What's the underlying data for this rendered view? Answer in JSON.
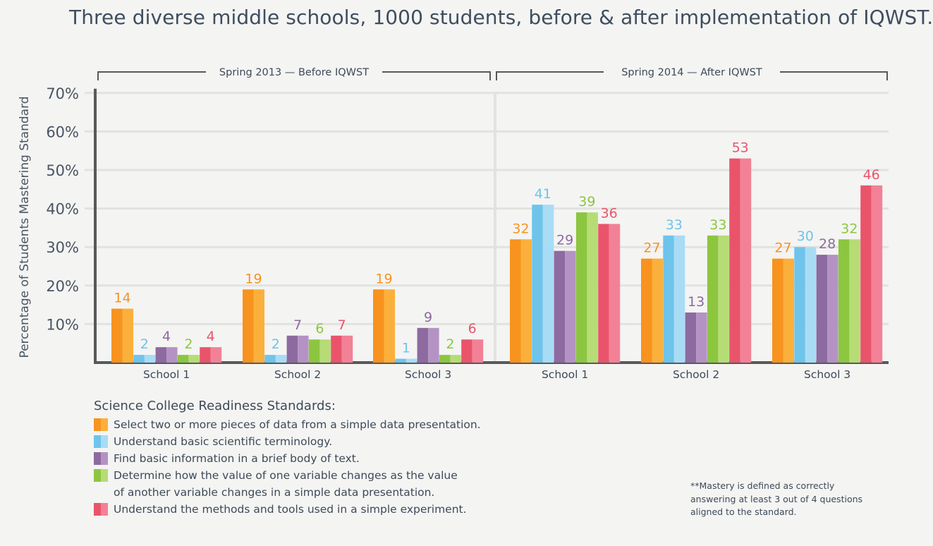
{
  "title": "Three diverse middle schools, 1000 students, before & after implementation of IQWST.",
  "chart_data": {
    "type": "bar",
    "ylabel": "Percentage of Students Mastering Standard",
    "ylim": [
      0,
      70
    ],
    "yticks": [
      "10%",
      "20%",
      "30%",
      "40%",
      "50%",
      "60%",
      "70%"
    ],
    "grid": true,
    "periods": [
      {
        "label": "Spring 2013 — Before IQWST",
        "categories": [
          "School 1",
          "School 2",
          "School 3"
        ],
        "series": [
          {
            "name": "Select two or more pieces of data from a simple data presentation.",
            "values": [
              14,
              19,
              19
            ]
          },
          {
            "name": "Understand basic scientific terminology.",
            "values": [
              2,
              2,
              1
            ]
          },
          {
            "name": "Find basic information in a brief body of text.",
            "values": [
              4,
              7,
              9
            ]
          },
          {
            "name": "Determine how the value of one variable changes as the value of another variable changes in a simple data presentation.",
            "values": [
              2,
              6,
              2
            ]
          },
          {
            "name": "Understand the methods and tools used in a simple experiment.",
            "values": [
              4,
              7,
              6
            ]
          }
        ]
      },
      {
        "label": "Spring 2014 — After IQWST",
        "categories": [
          "School 1",
          "School 2",
          "School 3"
        ],
        "series": [
          {
            "name": "Select two or more pieces of data from a simple data presentation.",
            "values": [
              32,
              27,
              27
            ]
          },
          {
            "name": "Understand basic scientific terminology.",
            "values": [
              41,
              33,
              30
            ]
          },
          {
            "name": "Find basic information in a brief body of text.",
            "values": [
              29,
              13,
              28
            ]
          },
          {
            "name": "Determine how the value of one variable changes as the value of another variable changes in a simple data presentation.",
            "values": [
              39,
              33,
              32
            ]
          },
          {
            "name": "Understand the methods and tools used in a simple experiment.",
            "values": [
              36,
              53,
              46
            ]
          }
        ]
      }
    ]
  },
  "series_colors": [
    {
      "dark": "#f7931e",
      "light": "#fbb03b",
      "label": "#f7931e"
    },
    {
      "dark": "#6ec4ea",
      "light": "#a8dcf5",
      "label": "#6ec4ea"
    },
    {
      "dark": "#8d6a9f",
      "light": "#b493c4",
      "label": "#8d6a9f"
    },
    {
      "dark": "#8cc63f",
      "light": "#b6dc76",
      "label": "#8cc63f"
    },
    {
      "dark": "#e9546b",
      "light": "#f28196",
      "label": "#e9546b"
    }
  ],
  "legend": {
    "title": "Science College Readiness Standards:",
    "items": [
      "Select two or more pieces of data from a simple data presentation.",
      "Understand basic scientific terminology.",
      "Find basic information in a brief body of text.",
      "Determine how the value of one variable changes as the value\nof another variable changes in a simple data presentation.",
      "Understand the methods and tools used in a simple experiment."
    ]
  },
  "footnote": "**Mastery is defined as correctly\nanswering at least 3 out of 4 questions\naligned to the standard."
}
